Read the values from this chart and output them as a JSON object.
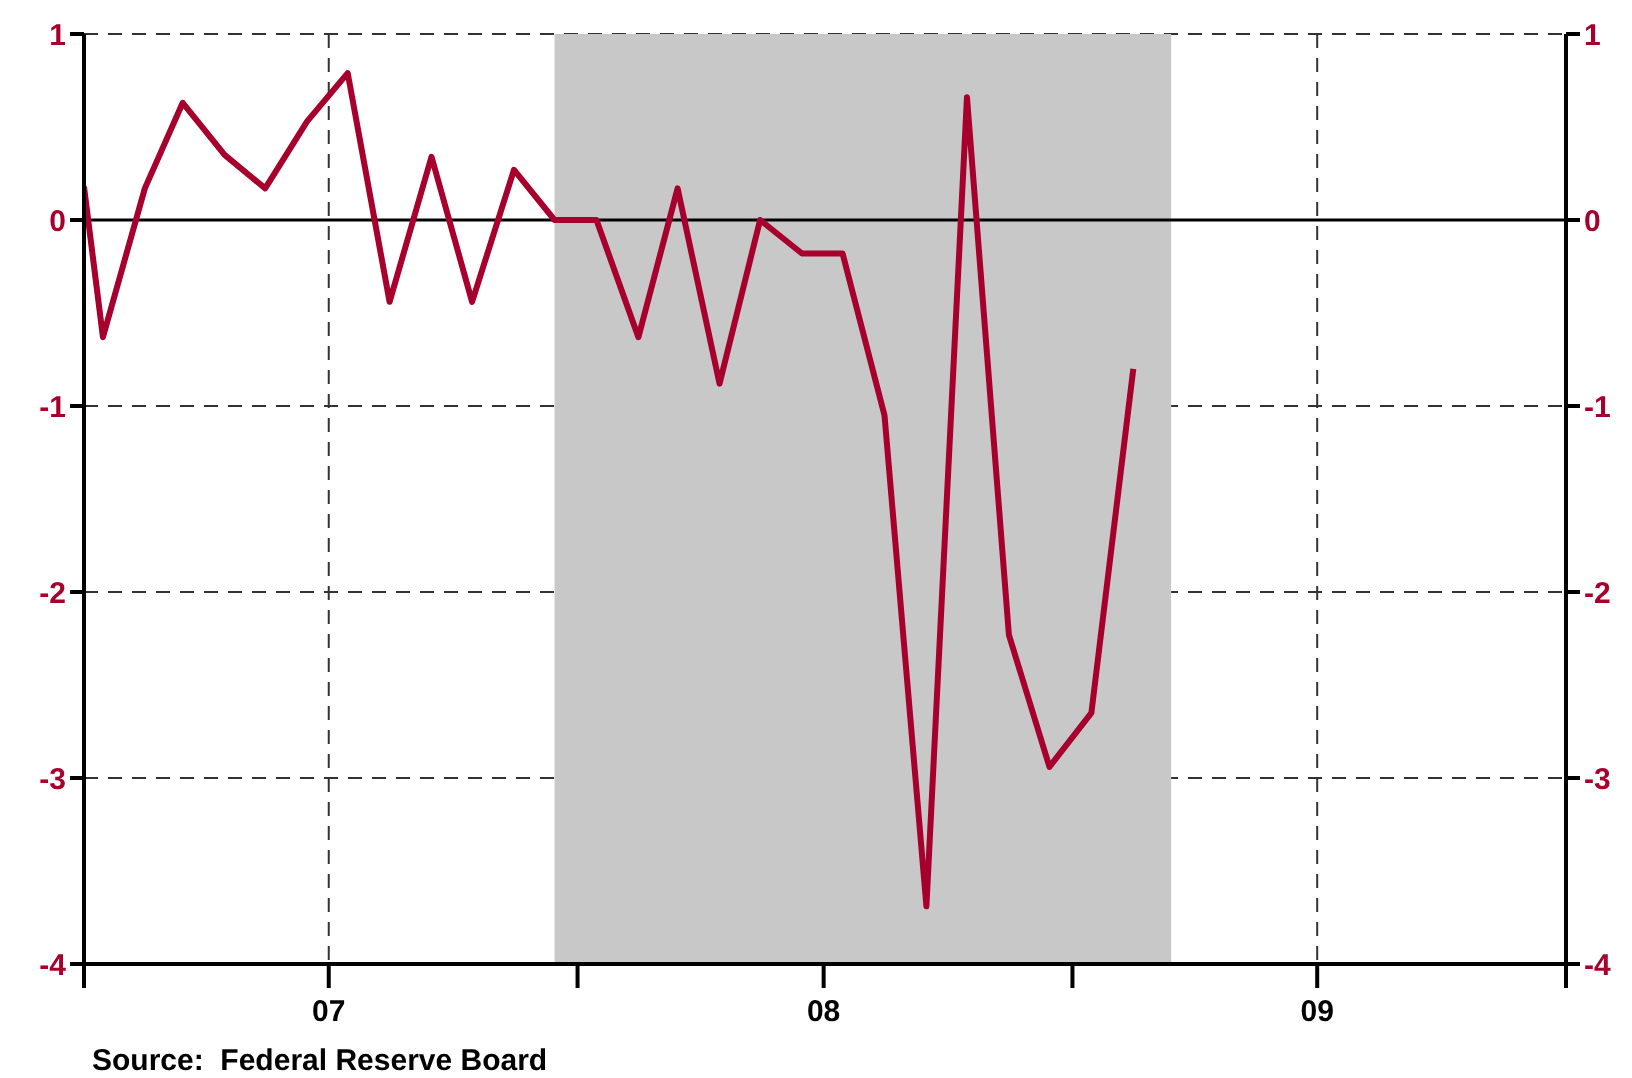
{
  "chart_data": {
    "type": "line",
    "x": [
      "2007-01-01",
      "2007-01-15",
      "2007-02-15",
      "2007-03-15",
      "2007-04-15",
      "2007-05-15",
      "2007-06-15",
      "2007-07-15",
      "2007-08-15",
      "2007-09-15",
      "2007-10-15",
      "2007-11-15",
      "2007-12-15",
      "2008-01-15",
      "2008-02-15",
      "2008-03-15",
      "2008-04-15",
      "2008-05-15",
      "2008-06-15",
      "2008-07-15",
      "2008-08-15",
      "2008-09-15",
      "2008-10-15",
      "2008-11-15",
      "2008-12-15",
      "2009-01-15",
      "2009-02-15"
    ],
    "series": [
      {
        "color": "#a8002c",
        "values": [
          0.18,
          -0.63,
          0.17,
          0.63,
          0.35,
          0.17,
          0.53,
          0.79,
          -0.44,
          0.34,
          -0.44,
          0.27,
          0,
          0,
          -0.63,
          0.17,
          -0.88,
          0,
          -0.18,
          -0.18,
          -1.05,
          -3.69,
          0.66,
          -2.23,
          -2.94,
          -2.65,
          -0.8
        ]
      }
    ],
    "xlim": [
      "2007-01-01",
      "2010-01-01"
    ],
    "xticks": [
      {
        "value": "2007-01-01",
        "label": null
      },
      {
        "value": "2007-07-01",
        "label": "07"
      },
      {
        "value": "2008-01-01",
        "label": null
      },
      {
        "value": "2008-07-01",
        "label": "08"
      },
      {
        "value": "2009-01-01",
        "label": null
      },
      {
        "value": "2009-07-01",
        "label": "09"
      },
      {
        "value": "2010-01-01",
        "label": null
      }
    ],
    "ylim": [
      -4,
      1
    ],
    "yticks": [
      -4,
      -3,
      -2,
      -1,
      0,
      1
    ],
    "y2lim": [
      -4,
      1
    ],
    "y2ticks": [
      -4,
      -3,
      -2,
      -1,
      0,
      1
    ],
    "bands": [
      {
        "axis": "x",
        "from": "2007-12-15",
        "to": "2009-03-15",
        "color": "#c8c8c8"
      }
    ],
    "ref_lines": [
      {
        "axis": "y",
        "value": 0,
        "color": "#000000",
        "line_style": "solid"
      }
    ],
    "grid": true,
    "marker": "none",
    "line_style": "solid",
    "annotations": [
      "Source:  Federal Reserve Board"
    ]
  }
}
